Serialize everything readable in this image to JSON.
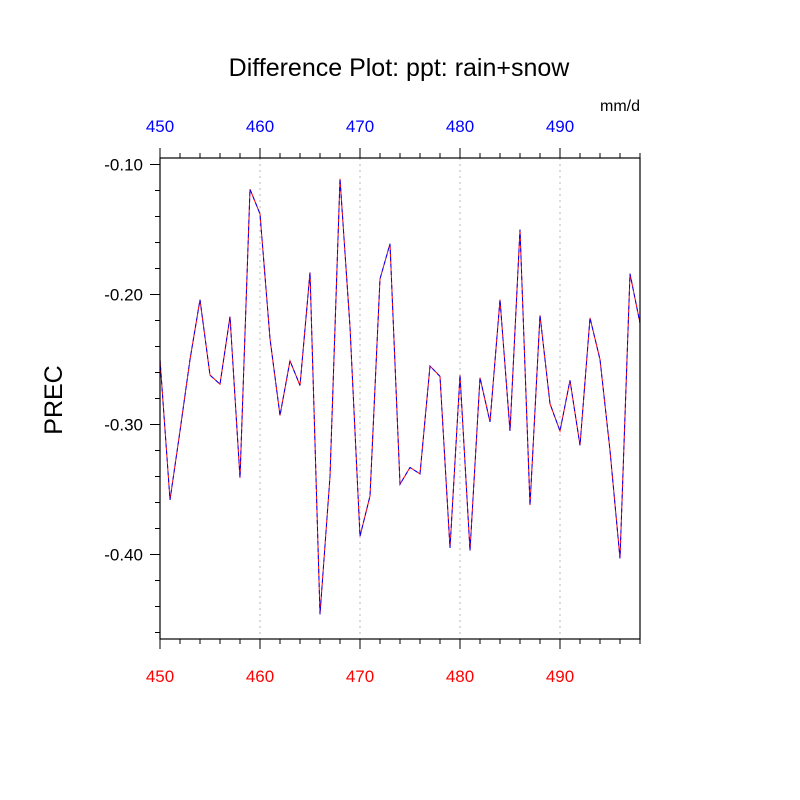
{
  "chart_data": {
    "type": "line",
    "title": "Difference Plot: ppt: rain+snow",
    "units": "mm/d",
    "ylabel": "PREC",
    "xlabel": "",
    "xlim": [
      450,
      498
    ],
    "ylim": [
      -0.465,
      -0.095
    ],
    "grid": "vertical dotted lines at major x ticks",
    "x_ticks": [
      450,
      460,
      470,
      480,
      490
    ],
    "x_tick_labels": [
      "450",
      "460",
      "470",
      "480",
      "490"
    ],
    "y_ticks": [
      -0.1,
      -0.2,
      -0.3,
      -0.4
    ],
    "y_tick_labels": [
      "-0.10",
      "-0.20",
      "-0.30",
      "-0.40"
    ],
    "colors": {
      "bottom_axis_labels": "#ff0000",
      "top_axis_labels": "#0000ff",
      "series_a": "#ff0000",
      "series_b": "#0000ff"
    },
    "x": [
      450,
      451,
      452,
      453,
      454,
      455,
      456,
      457,
      458,
      459,
      460,
      461,
      462,
      463,
      464,
      465,
      466,
      467,
      468,
      469,
      470,
      471,
      472,
      473,
      474,
      475,
      476,
      477,
      478,
      479,
      480,
      481,
      482,
      483,
      484,
      485,
      486,
      487,
      488,
      489,
      490,
      491,
      492,
      493,
      494,
      495,
      496,
      497,
      498
    ],
    "series": [
      {
        "values": [
          -0.25,
          -0.358,
          -0.305,
          -0.25,
          -0.204,
          -0.262,
          -0.269,
          -0.217,
          -0.341,
          -0.119,
          -0.138,
          -0.234,
          -0.293,
          -0.251,
          -0.27,
          -0.183,
          -0.446,
          -0.34,
          -0.111,
          -0.225,
          -0.386,
          -0.355,
          -0.188,
          -0.161,
          -0.346,
          -0.333,
          -0.338,
          -0.255,
          -0.263,
          -0.395,
          -0.262,
          -0.397,
          -0.264,
          -0.298,
          -0.204,
          -0.305,
          -0.15,
          -0.362,
          -0.216,
          -0.284,
          -0.305,
          -0.266,
          -0.316,
          -0.218,
          -0.25,
          -0.32,
          -0.403,
          -0.184,
          -0.222
        ]
      },
      {
        "values": [
          -0.25,
          -0.358,
          -0.305,
          -0.25,
          -0.204,
          -0.262,
          -0.269,
          -0.217,
          -0.341,
          -0.119,
          -0.138,
          -0.234,
          -0.293,
          -0.251,
          -0.27,
          -0.183,
          -0.446,
          -0.34,
          -0.111,
          -0.225,
          -0.386,
          -0.355,
          -0.188,
          -0.161,
          -0.346,
          -0.333,
          -0.338,
          -0.255,
          -0.263,
          -0.395,
          -0.262,
          -0.397,
          -0.264,
          -0.298,
          -0.204,
          -0.305,
          -0.15,
          -0.362,
          -0.216,
          -0.284,
          -0.305,
          -0.266,
          -0.316,
          -0.218,
          -0.25,
          -0.32,
          -0.403,
          -0.184,
          -0.222
        ]
      }
    ]
  }
}
